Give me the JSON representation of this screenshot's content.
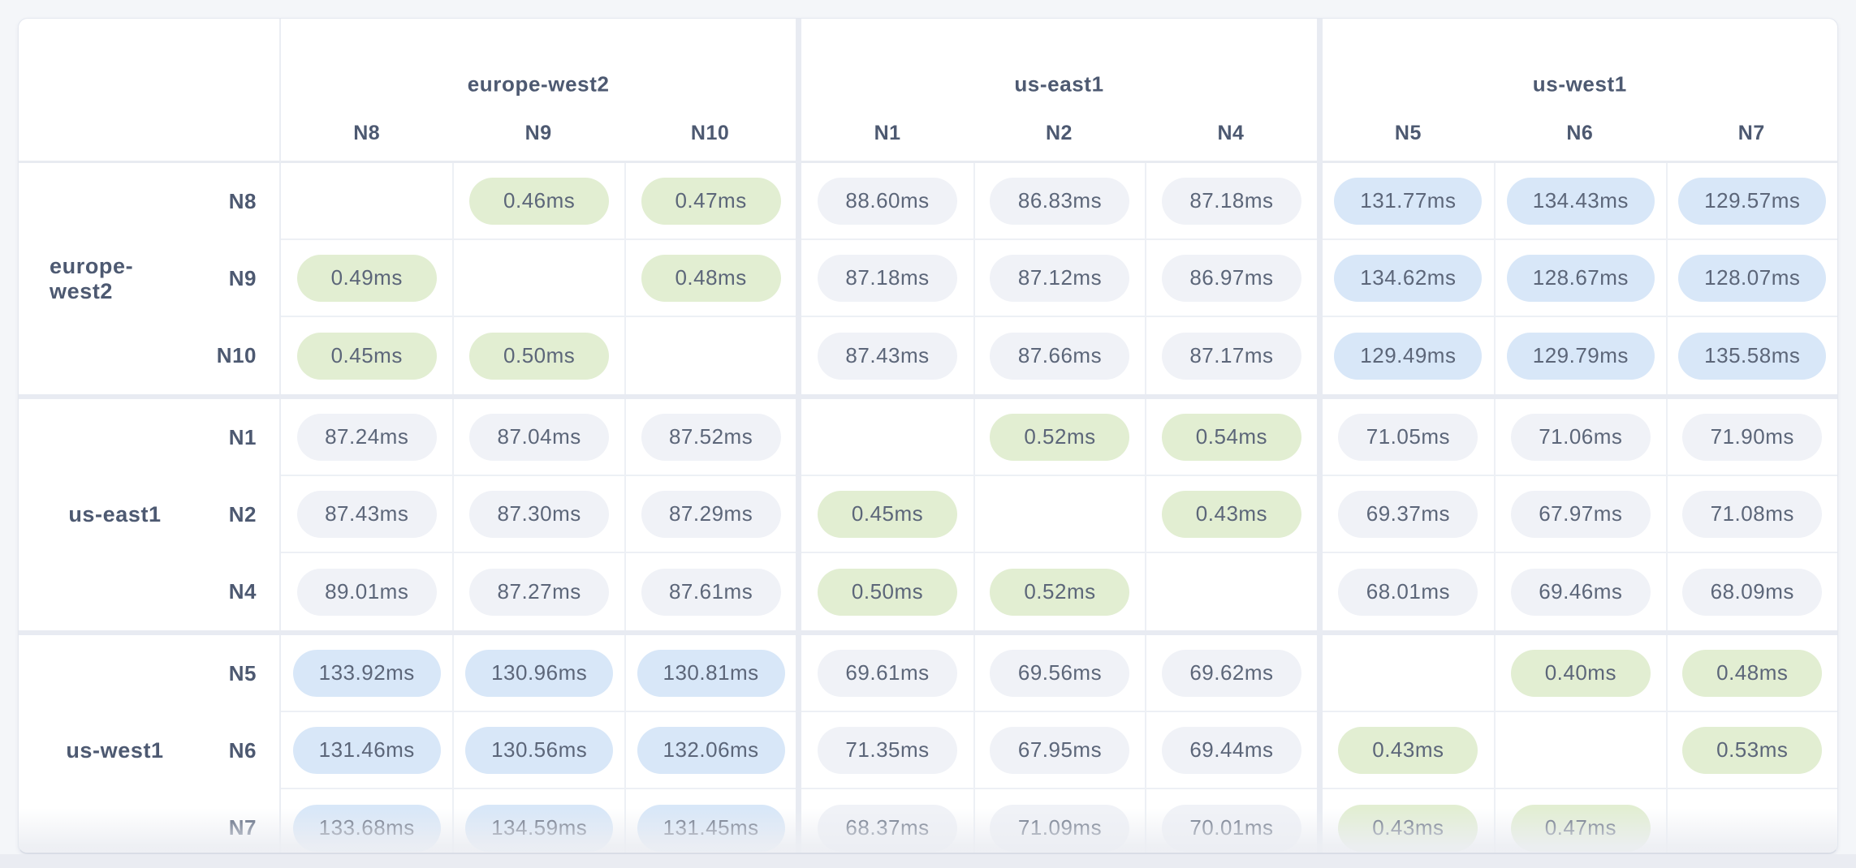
{
  "chart_data": {
    "type": "heatmap",
    "unit": "ms",
    "col_groups": [
      {
        "region": "europe-west2",
        "nodes": [
          "N8",
          "N9",
          "N10"
        ]
      },
      {
        "region": "us-east1",
        "nodes": [
          "N1",
          "N2",
          "N4"
        ]
      },
      {
        "region": "us-west1",
        "nodes": [
          "N5",
          "N6",
          "N7"
        ]
      }
    ],
    "row_groups": [
      {
        "region": "europe-west2",
        "nodes": [
          "N8",
          "N9",
          "N10"
        ]
      },
      {
        "region": "us-east1",
        "nodes": [
          "N1",
          "N2",
          "N4"
        ]
      },
      {
        "region": "us-west1",
        "nodes": [
          "N5",
          "N6",
          "N7"
        ]
      }
    ],
    "rows": [
      {
        "node": "N8",
        "values": [
          null,
          0.46,
          0.47,
          88.6,
          86.83,
          87.18,
          131.77,
          134.43,
          129.57
        ]
      },
      {
        "node": "N9",
        "values": [
          0.49,
          null,
          0.48,
          87.18,
          87.12,
          86.97,
          134.62,
          128.67,
          128.07
        ]
      },
      {
        "node": "N10",
        "values": [
          0.45,
          0.5,
          null,
          87.43,
          87.66,
          87.17,
          129.49,
          129.79,
          135.58
        ]
      },
      {
        "node": "N1",
        "values": [
          87.24,
          87.04,
          87.52,
          null,
          0.52,
          0.54,
          71.05,
          71.06,
          71.9
        ]
      },
      {
        "node": "N2",
        "values": [
          87.43,
          87.3,
          87.29,
          0.45,
          null,
          0.43,
          69.37,
          67.97,
          71.08
        ]
      },
      {
        "node": "N4",
        "values": [
          89.01,
          87.27,
          87.61,
          0.5,
          0.52,
          null,
          68.01,
          69.46,
          68.09
        ]
      },
      {
        "node": "N5",
        "values": [
          133.92,
          130.96,
          130.81,
          69.61,
          69.56,
          69.62,
          null,
          0.4,
          0.48
        ]
      },
      {
        "node": "N6",
        "values": [
          131.46,
          130.56,
          132.06,
          71.35,
          67.95,
          69.44,
          0.43,
          null,
          0.53
        ]
      },
      {
        "node": "N7",
        "values": [
          133.68,
          134.59,
          131.45,
          68.37,
          71.09,
          70.01,
          0.43,
          0.47,
          null
        ]
      }
    ],
    "thresholds": {
      "fast_below_ms": 1,
      "slow_above_ms": 100
    },
    "palette": {
      "fast_bg": "#e2eed2",
      "medium_bg": "#f0f2f7",
      "slow_bg": "#d8e7f8",
      "value_text": "#5c6679",
      "label_text": "#4d5971"
    }
  }
}
